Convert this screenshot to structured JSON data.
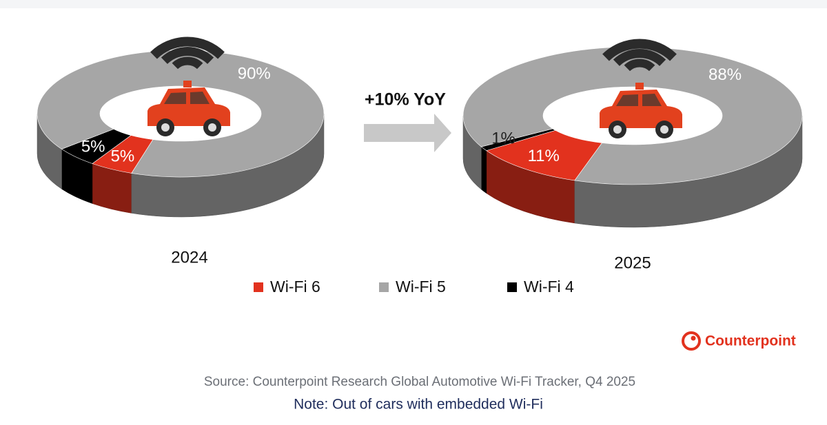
{
  "chart_data": [
    {
      "type": "donut",
      "title": "2024",
      "categories": [
        "Wi-Fi 6",
        "Wi-Fi 5",
        "Wi-Fi 4"
      ],
      "values": [
        5,
        90,
        5
      ],
      "value_labels": [
        "5%",
        "90%",
        "5%"
      ],
      "colors": [
        "#e2321e",
        "#a6a6a6",
        "#000000"
      ]
    },
    {
      "type": "donut",
      "title": "2025",
      "categories": [
        "Wi-Fi 6",
        "Wi-Fi 5",
        "Wi-Fi 4"
      ],
      "values": [
        11,
        88,
        1
      ],
      "value_labels": [
        "11%",
        "88%",
        "1%"
      ],
      "colors": [
        "#e2321e",
        "#a6a6a6",
        "#000000"
      ]
    }
  ],
  "annotation": "+10% YoY",
  "logo": "Counterpoint",
  "source": "Source: Counterpoint Research Global Automotive Wi-Fi Tracker, Q4 2025",
  "note": "Note: Out of cars with embedded Wi-Fi"
}
